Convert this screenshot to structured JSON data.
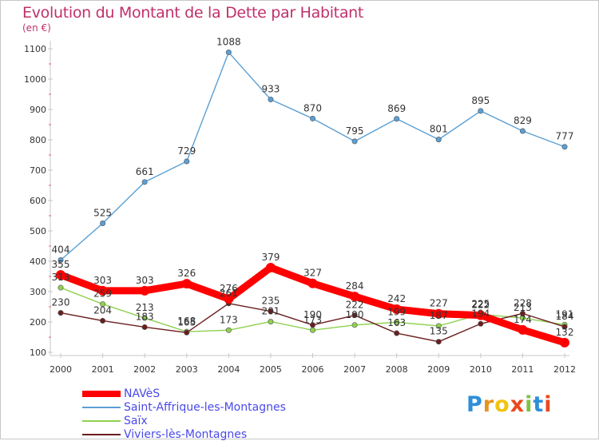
{
  "title": "Evolution du Montant de la Dette par Habitant",
  "unit": "(en €)",
  "logo": "Proxiti",
  "logo_letters": [
    {
      "ch": "P",
      "color": "#2e8fd8"
    },
    {
      "ch": "r",
      "color": "#e8931e"
    },
    {
      "ch": "o",
      "color": "#f1c40f"
    },
    {
      "ch": "x",
      "color": "#e8491d"
    },
    {
      "ch": "i",
      "color": "#7cc242"
    },
    {
      "ch": "t",
      "color": "#2e8fd8"
    },
    {
      "ch": "i",
      "color": "#e8491d"
    }
  ],
  "chart_data": {
    "type": "line",
    "title": "Evolution du Montant de la Dette par Habitant",
    "ylabel": "(en €)",
    "xlabel": "",
    "x": [
      "2000",
      "2001",
      "2002",
      "2003",
      "2004",
      "2005",
      "2006",
      "2007",
      "2008",
      "2009",
      "2010",
      "2011",
      "2012"
    ],
    "ylim": [
      100,
      1100
    ],
    "yticks": [
      100,
      200,
      300,
      400,
      500,
      600,
      700,
      800,
      900,
      1000,
      1100
    ],
    "grid": false,
    "legend_position": "bottom-left",
    "series": [
      {
        "name": "NAVèS",
        "color": "#ff0000",
        "values": [
          355,
          303,
          303,
          326,
          276,
          379,
          327,
          284,
          242,
          227,
          222,
          174,
          132
        ]
      },
      {
        "name": "Saint-Affrique-les-Montagnes",
        "color": "#5a9fd4",
        "values": [
          404,
          525,
          661,
          729,
          1088,
          933,
          870,
          795,
          869,
          801,
          895,
          829,
          777
        ]
      },
      {
        "name": "Saïx",
        "color": "#8fd14f",
        "values": [
          313,
          259,
          213,
          168,
          173,
          201,
          173,
          190,
          199,
          187,
          225,
          213,
          191
        ]
      },
      {
        "name": "Viviers-lès-Montagnes",
        "color": "#6b1e1e",
        "values": [
          230,
          204,
          183,
          165,
          261,
          235,
          190,
          222,
          163,
          135,
          194,
          228,
          184
        ]
      }
    ]
  }
}
